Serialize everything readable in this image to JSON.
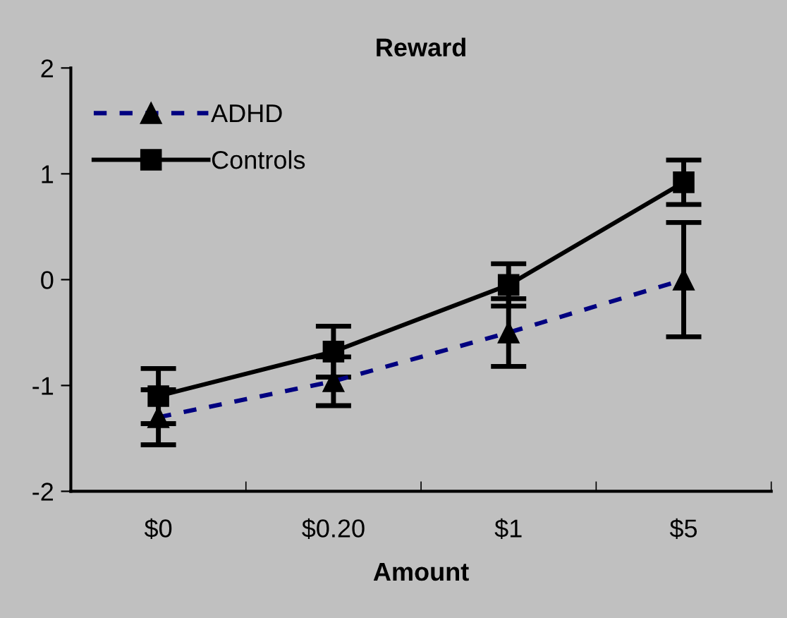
{
  "chart_data": {
    "type": "line",
    "title": "Reward",
    "xlabel": "Amount",
    "categories": [
      "$0",
      "$0.20",
      "$1",
      "$5"
    ],
    "series": [
      {
        "name": "ADHD",
        "color": "#000080",
        "marker": "triangle",
        "line_style": "dashed",
        "values": [
          -1.3,
          -0.96,
          -0.5,
          0.0
        ],
        "errors": [
          0.26,
          0.23,
          0.32,
          0.54
        ]
      },
      {
        "name": "Controls",
        "color": "#000000",
        "marker": "square",
        "line_style": "solid",
        "values": [
          -1.1,
          -0.68,
          -0.05,
          0.92
        ],
        "errors": [
          0.26,
          0.24,
          0.2,
          0.21
        ]
      }
    ],
    "ylim": [
      -2,
      2
    ],
    "yticks": [
      -2,
      -1,
      0,
      1,
      2
    ],
    "grid": false,
    "legend": "top left"
  }
}
